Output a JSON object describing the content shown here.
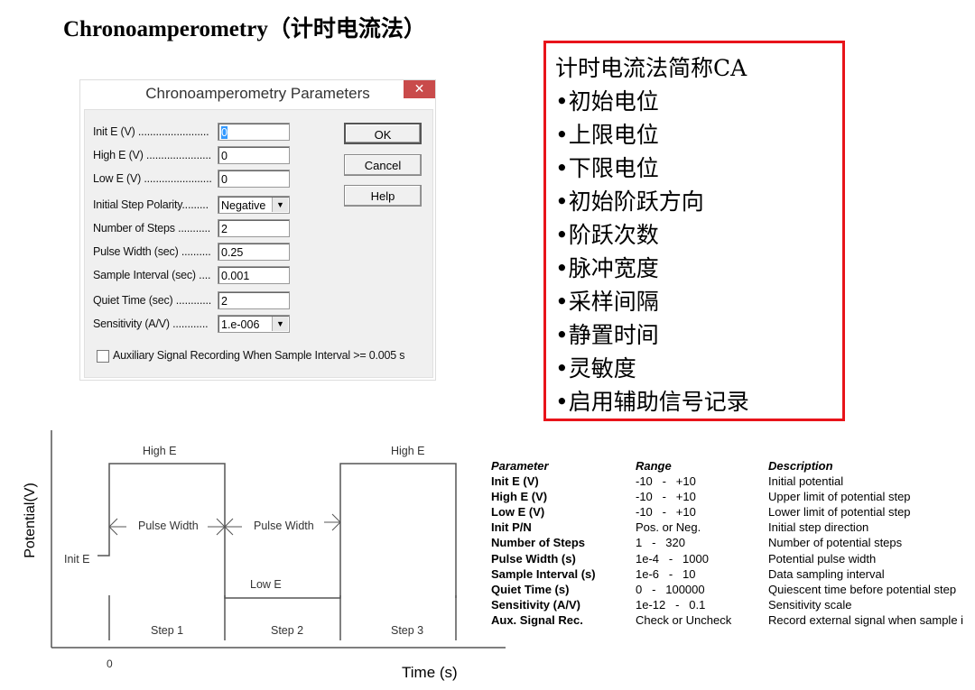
{
  "title": "Chronoamperometry（计时电流法）",
  "dialog": {
    "title": "Chronoamperometry Parameters",
    "close_icon": "close-icon",
    "fields": [
      {
        "label": "Init E (V) ........................",
        "value": "0",
        "type": "text"
      },
      {
        "label": "High E (V) ......................",
        "value": "0",
        "type": "text"
      },
      {
        "label": "Low E (V) .......................",
        "value": "0",
        "type": "text"
      },
      {
        "label": "Initial Step Polarity.........",
        "value": "Negative",
        "type": "select"
      },
      {
        "label": "Number of Steps ...........",
        "value": "2",
        "type": "text"
      },
      {
        "label": "Pulse Width (sec) ..........",
        "value": "0.25",
        "type": "text"
      },
      {
        "label": "Sample Interval (sec) ....",
        "value": "0.001",
        "type": "text"
      },
      {
        "label": "Quiet Time (sec) ............",
        "value": "2",
        "type": "text"
      },
      {
        "label": "Sensitivity (A/V) ............",
        "value": "1.e-006",
        "type": "select"
      }
    ],
    "buttons": {
      "ok": "OK",
      "cancel": "Cancel",
      "help": "Help"
    },
    "checkbox": {
      "label": "Auxiliary Signal Recording When Sample Interval >= 0.005 s",
      "checked": false
    }
  },
  "notes": [
    "计时电流法简称CA",
    "•初始电位",
    "•上限电位",
    "•下限电位",
    "•初始阶跃方向",
    "•阶跃次数",
    "•脉冲宽度",
    "•采样间隔",
    "•静置时间",
    "•灵敏度",
    "•启用辅助信号记录"
  ],
  "notes_border_color": "#e8141a",
  "diagram": {
    "ylabel": "Potential(V)",
    "xlabel": "Time (s)",
    "origin": "0",
    "high_e_1": "High E",
    "high_e_2": "High E",
    "low_e": "Low E",
    "init_e": "Init E",
    "pulse_width_1": "Pulse Width",
    "pulse_width_2": "Pulse Width",
    "steps": [
      "Step 1",
      "Step 2",
      "Step 3"
    ]
  },
  "table": {
    "headers": [
      "Parameter",
      "Range",
      "Description"
    ],
    "rows": [
      [
        "Init E (V)",
        "-10   -   +10",
        "Initial potential"
      ],
      [
        "High E (V)",
        "-10   -   +10",
        "Upper limit of potential step"
      ],
      [
        "Low E (V)",
        "-10   -   +10",
        "Lower limit of potential step"
      ],
      [
        "Init P/N",
        "Pos. or Neg.",
        "Initial step direction"
      ],
      [
        "Number of Steps",
        "1   -   320",
        "Number of potential steps"
      ],
      [
        "Pulse Width (s)",
        "1e-4   -   1000",
        "Potential pulse width"
      ],
      [
        "Sample Interval (s)",
        "1e-6   -   10",
        "Data sampling interval"
      ],
      [
        "Quiet Time (s)",
        "0   -   100000",
        "Quiescent time before potential step"
      ],
      [
        "Sensitivity (A/V)",
        "1e-12   -   0.1",
        "Sensitivity scale"
      ],
      [
        "Aux. Signal Rec.",
        "Check or Uncheck",
        "Record external signal when sample i"
      ]
    ]
  }
}
